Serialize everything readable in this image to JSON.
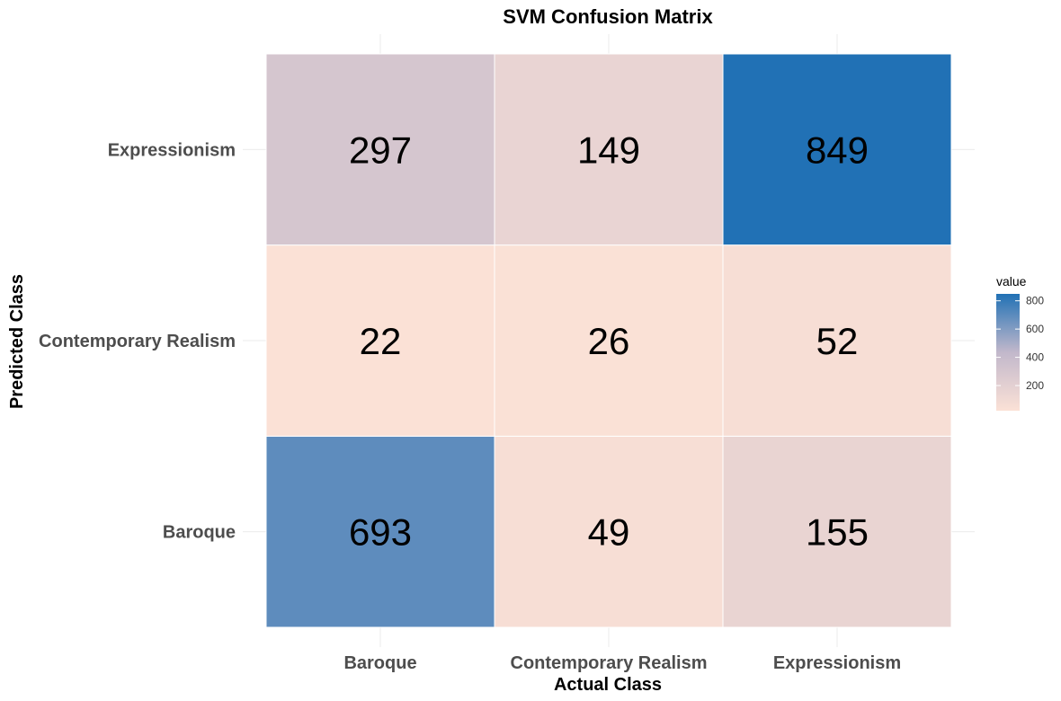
{
  "chart_data": {
    "type": "heatmap",
    "title": "SVM Confusion Matrix",
    "xlabel": "Actual Class",
    "ylabel": "Predicted Class",
    "x_categories": [
      "Baroque",
      "Contemporary Realism",
      "Expressionism"
    ],
    "y_categories": [
      "Baroque",
      "Contemporary Realism",
      "Expressionism"
    ],
    "cells": [
      {
        "actual": "Baroque",
        "predicted": "Baroque",
        "value": 693
      },
      {
        "actual": "Contemporary Realism",
        "predicted": "Baroque",
        "value": 49
      },
      {
        "actual": "Expressionism",
        "predicted": "Baroque",
        "value": 155
      },
      {
        "actual": "Baroque",
        "predicted": "Contemporary Realism",
        "value": 22
      },
      {
        "actual": "Contemporary Realism",
        "predicted": "Contemporary Realism",
        "value": 26
      },
      {
        "actual": "Expressionism",
        "predicted": "Contemporary Realism",
        "value": 52
      },
      {
        "actual": "Baroque",
        "predicted": "Expressionism",
        "value": 297
      },
      {
        "actual": "Contemporary Realism",
        "predicted": "Expressionism",
        "value": 149
      },
      {
        "actual": "Expressionism",
        "predicted": "Expressionism",
        "value": 849
      }
    ],
    "legend": {
      "title": "value",
      "ticks": [
        200,
        400,
        600,
        800
      ],
      "placement": "right",
      "range": [
        22,
        849
      ]
    },
    "colors": {
      "low": "#fbe1d6",
      "mid": "#c2b8cb",
      "high": "#2171b5",
      "grid": "#ebebeb",
      "axis_text": "#4d4d4d"
    },
    "grid": true
  }
}
